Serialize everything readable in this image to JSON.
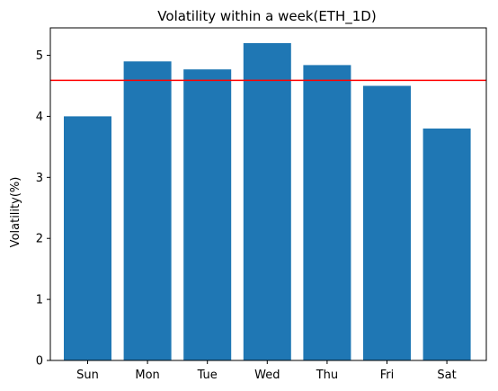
{
  "chart_data": {
    "type": "bar",
    "title": "Volatility within a week(ETH_1D)",
    "xlabel": "",
    "ylabel": "Volatility(%)",
    "categories": [
      "Sun",
      "Mon",
      "Tue",
      "Wed",
      "Thu",
      "Fri",
      "Sat"
    ],
    "values": [
      4.0,
      4.9,
      4.77,
      5.2,
      4.84,
      4.5,
      3.8
    ],
    "ylim": [
      0,
      5.45
    ],
    "yticks": [
      0,
      1,
      2,
      3,
      4,
      5
    ],
    "reference_line": {
      "value": 4.59,
      "color": "#ff0000"
    },
    "bar_color": "#1f77b4",
    "grid": false,
    "legend": "none"
  }
}
